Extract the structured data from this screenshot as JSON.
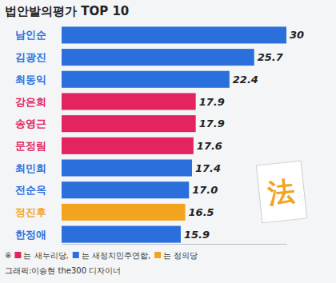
{
  "chart_data": {
    "type": "bar",
    "title": "법안발의평가 TOP 10",
    "orientation": "horizontal",
    "categories": [
      "남인순",
      "김광진",
      "최동익",
      "강은희",
      "송영근",
      "문정림",
      "최민희",
      "전순옥",
      "정진후",
      "한정애"
    ],
    "values": [
      30,
      25.7,
      22.4,
      17.9,
      17.9,
      17.6,
      17.4,
      17.0,
      16.5,
      15.9
    ],
    "value_labels": [
      "30",
      "25.7",
      "22.4",
      "17.9",
      "17.9",
      "17.6",
      "17.4",
      "17.0",
      "16.5",
      "15.9"
    ],
    "colors": [
      "#2b6fdc",
      "#2b6fdc",
      "#2b6fdc",
      "#e3245e",
      "#e3245e",
      "#e3245e",
      "#2b6fdc",
      "#2b6fdc",
      "#f3a41e",
      "#2b6fdc"
    ],
    "xlim": [
      0,
      30
    ],
    "data_labels": true,
    "tick_labels": false,
    "grid": false,
    "annotation": "法",
    "footnote": {
      "prefix": "※",
      "items": [
        {
          "label": "는 새누리당,",
          "color": "#e3245e"
        },
        {
          "label": "는 새정치민주연합,",
          "color": "#2b6fdc"
        },
        {
          "label": "는 정의당",
          "color": "#f3a41e"
        }
      ]
    },
    "credit": "그래픽:이승현 the300 디자이너"
  }
}
